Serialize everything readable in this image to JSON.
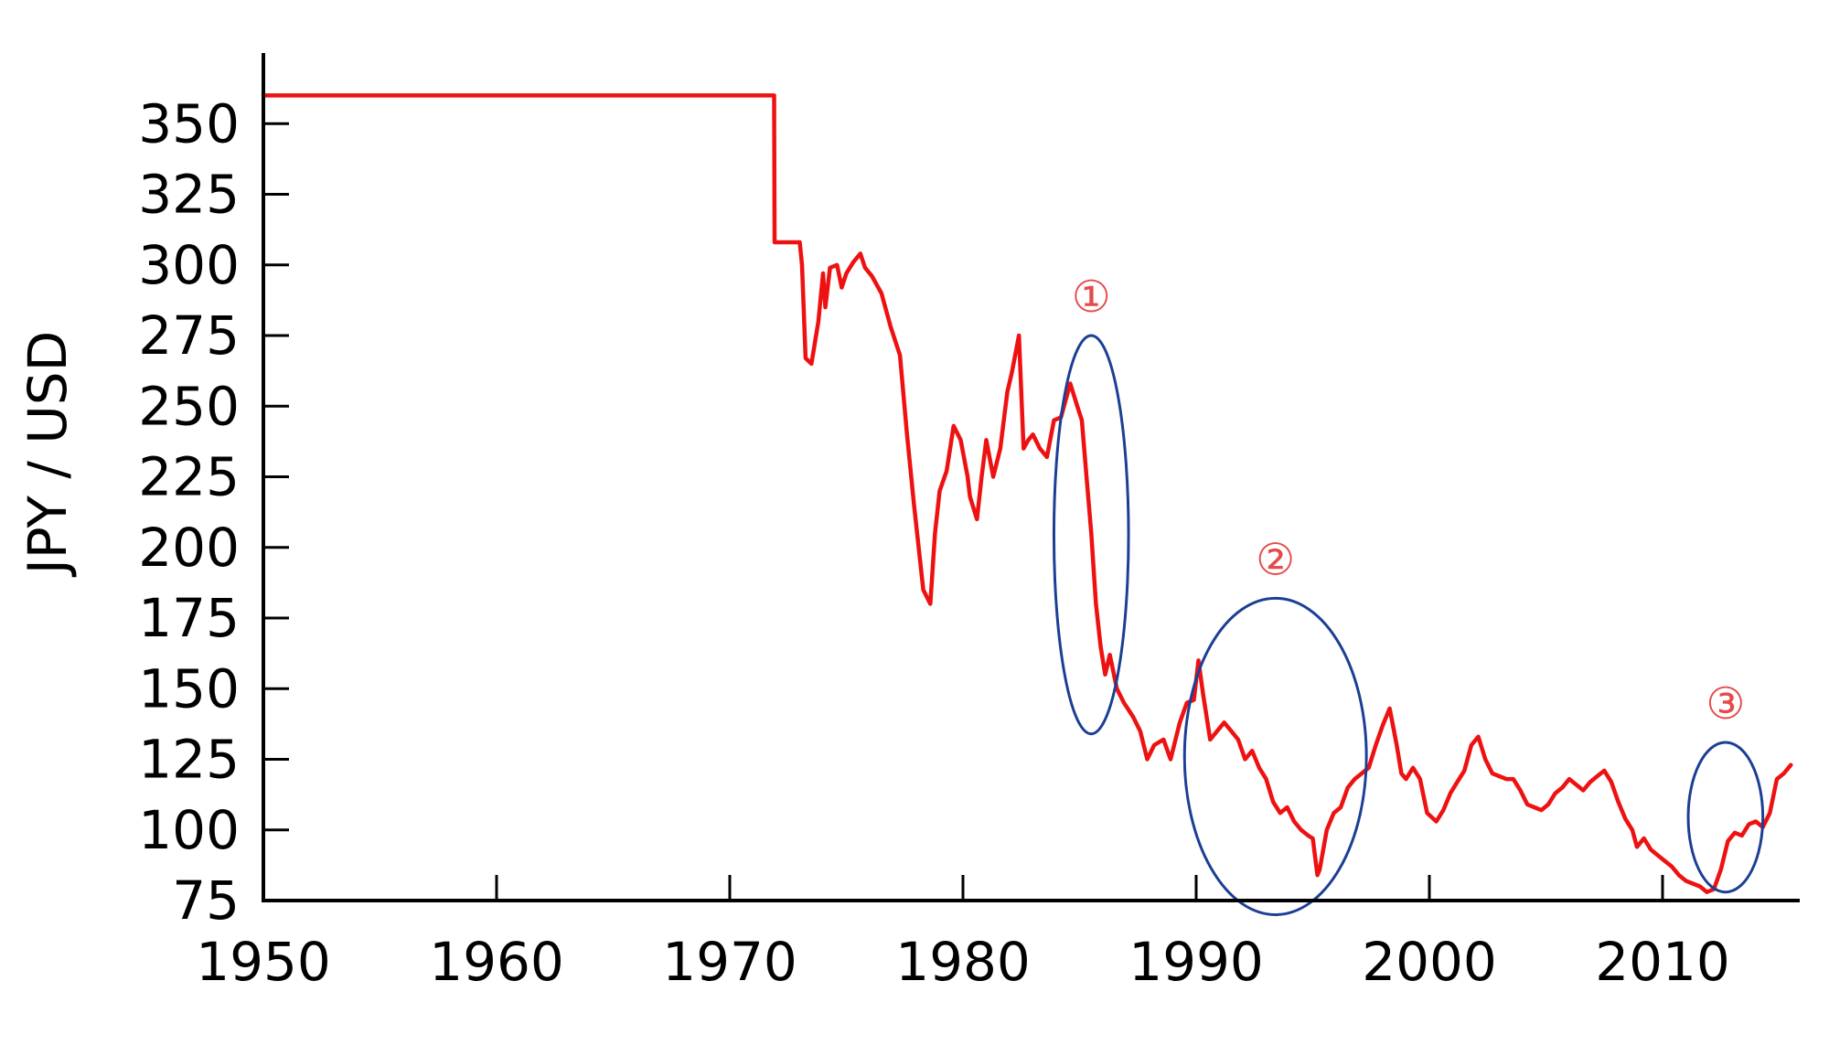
{
  "chart_data": {
    "type": "line",
    "title": "",
    "xlabel": "",
    "ylabel": "JPY / USD",
    "xlim": [
      1950,
      2016
    ],
    "ylim": [
      75,
      370
    ],
    "x_ticks": [
      1950,
      1960,
      1970,
      1980,
      1990,
      2000,
      2010
    ],
    "x_tick_labels": [
      "1950",
      "1960",
      "1970",
      "1980",
      "1990",
      "2000",
      "2010"
    ],
    "y_ticks": [
      75,
      100,
      125,
      150,
      175,
      200,
      225,
      250,
      275,
      300,
      325,
      350
    ],
    "y_tick_labels": [
      "75",
      "100",
      "125",
      "150",
      "175",
      "200",
      "225",
      "250",
      "275",
      "300",
      "325",
      "350"
    ],
    "grid": false,
    "line_color": "#ee1111",
    "series": [
      {
        "x": [
          1950,
          1971.9,
          1971.92,
          1973.0,
          1973.1,
          1973.25,
          1973.5,
          1973.8,
          1974.0,
          1974.1,
          1974.3,
          1974.6,
          1974.8,
          1975.0,
          1975.3,
          1975.6,
          1975.8,
          1976.1,
          1976.5,
          1976.9,
          1977.3,
          1977.6,
          1977.9,
          1978.3,
          1978.6,
          1978.8,
          1979.0,
          1979.3,
          1979.6,
          1979.9,
          1980.2,
          1980.3,
          1980.6,
          1980.8,
          1981.0,
          1981.3,
          1981.6,
          1981.9,
          1982.1,
          1982.4,
          1982.6,
          1982.8,
          1983.0,
          1983.3,
          1983.6,
          1983.9,
          1984.2,
          1984.6,
          1984.9,
          1985.1,
          1985.3,
          1985.5,
          1985.7,
          1985.9,
          1986.1,
          1986.3,
          1986.6,
          1986.9,
          1987.3,
          1987.6,
          1987.9,
          1988.2,
          1988.6,
          1988.9,
          1989.3,
          1989.6,
          1989.9,
          1990.1,
          1990.3,
          1990.6,
          1990.9,
          1991.2,
          1991.5,
          1991.8,
          1992.1,
          1992.4,
          1992.7,
          1993.0,
          1993.3,
          1993.6,
          1993.9,
          1994.2,
          1994.5,
          1994.8,
          1995.0,
          1995.2,
          1995.3,
          1995.6,
          1995.9,
          1996.2,
          1996.5,
          1996.8,
          1997.1,
          1997.4,
          1997.7,
          1998.0,
          1998.3,
          1998.6,
          1998.8,
          1999.0,
          1999.3,
          1999.6,
          1999.9,
          2000.3,
          2000.6,
          2000.9,
          2001.2,
          2001.5,
          2001.8,
          2002.1,
          2002.4,
          2002.7,
          2003.0,
          2003.3,
          2003.6,
          2003.9,
          2004.2,
          2004.5,
          2004.8,
          2005.1,
          2005.4,
          2005.7,
          2006.0,
          2006.3,
          2006.6,
          2006.9,
          2007.2,
          2007.5,
          2007.8,
          2008.1,
          2008.4,
          2008.7,
          2008.9,
          2009.2,
          2009.5,
          2009.8,
          2010.1,
          2010.4,
          2010.7,
          2011.0,
          2011.3,
          2011.6,
          2011.9,
          2012.2,
          2012.5,
          2012.8,
          2013.1,
          2013.4,
          2013.7,
          2014.0,
          2014.3,
          2014.6,
          2014.9,
          2015.2,
          2015.5
        ],
        "y": [
          360,
          360,
          308,
          308,
          300,
          267,
          265,
          280,
          297,
          285,
          299,
          300,
          292,
          297,
          301,
          304,
          299,
          296,
          290,
          278,
          268,
          240,
          215,
          185,
          180,
          205,
          220,
          227,
          243,
          238,
          225,
          218,
          210,
          225,
          238,
          225,
          235,
          255,
          262,
          275,
          235,
          238,
          240,
          235,
          232,
          245,
          246,
          258,
          250,
          245,
          225,
          205,
          180,
          165,
          155,
          162,
          150,
          145,
          140,
          135,
          125,
          130,
          132,
          125,
          138,
          145,
          146,
          160,
          148,
          132,
          135,
          138,
          135,
          132,
          125,
          128,
          122,
          118,
          110,
          106,
          108,
          103,
          100,
          98,
          97,
          84,
          86,
          100,
          106,
          108,
          115,
          118,
          120,
          122,
          130,
          137,
          143,
          130,
          120,
          118,
          122,
          118,
          106,
          103,
          107,
          113,
          117,
          121,
          130,
          133,
          125,
          120,
          119,
          118,
          118,
          114,
          109,
          108,
          107,
          109,
          113,
          115,
          118,
          116,
          114,
          117,
          119,
          121,
          117,
          110,
          104,
          100,
          94,
          97,
          93,
          91,
          89,
          87,
          84,
          82,
          81,
          80,
          78,
          79,
          86,
          96,
          99,
          98,
          102,
          103,
          101,
          106,
          118,
          120,
          123
        ]
      }
    ],
    "annotations": [
      {
        "label": "①",
        "x_center": 1985.5,
        "x_halfwidth": 1.6,
        "y_top": 275,
        "y_bottom": 134
      },
      {
        "label": "②",
        "x_center": 1993.4,
        "x_halfwidth": 3.9,
        "y_top": 182,
        "y_bottom": 70
      },
      {
        "label": "③",
        "x_center": 2012.7,
        "x_halfwidth": 1.6,
        "y_top": 131,
        "y_bottom": 78
      }
    ],
    "annotation_label_color": "#e64b4b",
    "annotation_ellipse_color": "#1c3f94"
  }
}
